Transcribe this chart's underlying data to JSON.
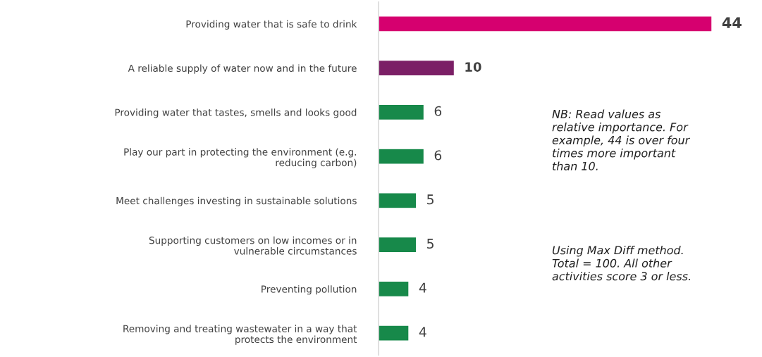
{
  "chart_data": {
    "type": "bar",
    "orientation": "horizontal",
    "data_labels": true,
    "grid": false,
    "legend": false,
    "categories": [
      "Providing water that is safe to drink",
      "A reliable supply of water now and in the future",
      "Providing water that tastes, smells and looks good",
      "Play our part in protecting the environment (e.g.\nreducing carbon)",
      "Meet challenges investing in sustainable solutions",
      "Supporting customers on low incomes or in\nvulnerable circumstances",
      "Preventing pollution",
      "Removing and treating wastewater in a way that\nprotects the environment"
    ],
    "values": [
      44,
      10,
      6,
      6,
      5,
      5,
      4,
      4
    ],
    "colors": [
      "#d6006f",
      "#7b1f66",
      "#17894a",
      "#17894a",
      "#17894a",
      "#17894a",
      "#17894a",
      "#17894a"
    ],
    "annotations": [
      "NB: Read values as\nrelative importance. For\nexample, 44 is over four\ntimes more important\nthan 10.",
      "Using Max Diff method.\nTotal = 100. All other\nactivities score 3 or less."
    ]
  }
}
